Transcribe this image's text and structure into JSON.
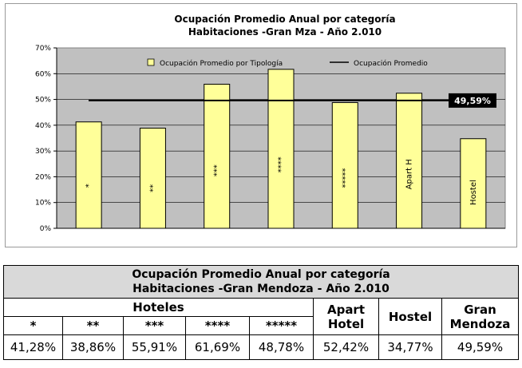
{
  "chart_data": {
    "type": "bar",
    "title": [
      "Ocupación Promedio Anual por categoría",
      "Habitaciones -Gran Mza - Año 2.010"
    ],
    "categories": [
      "*",
      "**",
      "***",
      "****",
      "*****",
      "Apart H",
      "Hostel"
    ],
    "series": [
      {
        "name": "Ocupación Promedio por Tipología",
        "values": [
          41.28,
          38.86,
          55.91,
          61.69,
          48.78,
          52.42,
          34.77
        ]
      }
    ],
    "reference_line": {
      "name": "Ocupación Promedio",
      "value": 49.59,
      "label": "49,59%"
    },
    "ylim": [
      0,
      70
    ],
    "yticks": [
      "0%",
      "10%",
      "20%",
      "30%",
      "40%",
      "50%",
      "60%",
      "70%"
    ],
    "legend_placement": "top-right",
    "grid": true,
    "colors": {
      "plot_bg": "#c0c0c0",
      "bar_fill": "#ffff99",
      "bar_border": "#000000",
      "line": "#000000",
      "label_bg": "#000000"
    }
  },
  "table": {
    "title_line1": "Ocupación Promedio Anual por categoría",
    "title_line2": "Habitaciones -Gran Mendoza - Año 2.010",
    "group_header": "Hoteles",
    "hotel_categories": [
      "*",
      "**",
      "***",
      "****",
      "*****"
    ],
    "apart_header_1": "Apart",
    "apart_header_2": "Hotel",
    "hostel_header": "Hostel",
    "gran_header_1": "Gran",
    "gran_header_2": "Mendoza",
    "values": [
      "41,28%",
      "38,86%",
      "55,91%",
      "61,69%",
      "48,78%",
      "52,42%",
      "34,77%",
      "49,59%"
    ]
  }
}
